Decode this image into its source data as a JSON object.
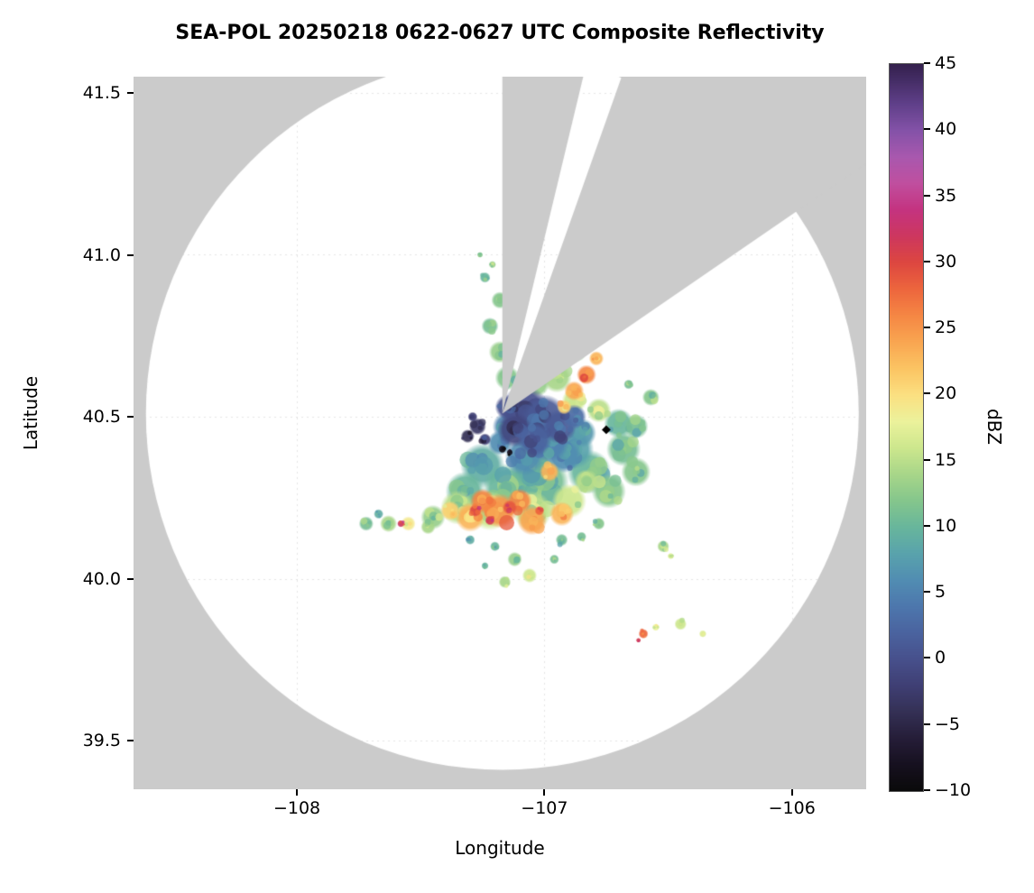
{
  "page": {
    "background": "#ffffff"
  },
  "chart_data": {
    "type": "heatmap",
    "variant": "radar-ppi-composite-reflectivity",
    "title": "SEA-POL 20250218 0622-0627 UTC Composite Reflectivity",
    "xlabel": "Longitude",
    "ylabel": "Latitude",
    "xlim": [
      -108.66,
      -105.7
    ],
    "ylim": [
      39.35,
      41.55
    ],
    "xticks": [
      -108,
      -107,
      -106
    ],
    "xtick_labels": [
      "−108",
      "−107",
      "−106"
    ],
    "yticks": [
      39.5,
      40.0,
      40.5,
      41.0,
      41.5
    ],
    "ytick_labels": [
      "39.5",
      "40.0",
      "40.5",
      "41.0",
      "41.5"
    ],
    "grid": {
      "visible": true,
      "style": "dotted"
    },
    "colors": {
      "no_coverage_gray": "#cbcbcb",
      "coverage_white": "#ffffff",
      "marker_black": "#000000",
      "text": "#000000"
    },
    "colorbar": {
      "label": "dBZ",
      "min": -10,
      "max": 45,
      "ticks": [
        45,
        40,
        35,
        30,
        25,
        20,
        15,
        10,
        5,
        0,
        -5,
        -10
      ],
      "tick_labels": [
        "45",
        "40",
        "35",
        "30",
        "25",
        "20",
        "15",
        "10",
        "5",
        "0",
        "−5",
        "−10"
      ],
      "orientation": "vertical",
      "position": "right"
    },
    "colormap_stops": [
      [
        -10,
        "#0a0a0a"
      ],
      [
        -8,
        "#16101f"
      ],
      [
        -6,
        "#251d38"
      ],
      [
        -4,
        "#343055"
      ],
      [
        -2,
        "#3f3f74"
      ],
      [
        0,
        "#47508c"
      ],
      [
        2,
        "#4a639f"
      ],
      [
        4,
        "#4d77ad"
      ],
      [
        6,
        "#518db2"
      ],
      [
        8,
        "#59a3ac"
      ],
      [
        10,
        "#68b69c"
      ],
      [
        12,
        "#85c68c"
      ],
      [
        14,
        "#a8d689"
      ],
      [
        16,
        "#cde78d"
      ],
      [
        18,
        "#ecf29c"
      ],
      [
        20,
        "#fbe081"
      ],
      [
        22,
        "#fbc463"
      ],
      [
        24,
        "#f9a651"
      ],
      [
        26,
        "#f58744"
      ],
      [
        28,
        "#ed663d"
      ],
      [
        30,
        "#dd4740"
      ],
      [
        32,
        "#cd375f"
      ],
      [
        34,
        "#c43380"
      ],
      [
        36,
        "#c04f9f"
      ],
      [
        38,
        "#a958ae"
      ],
      [
        40,
        "#8452a8"
      ],
      [
        42,
        "#60408a"
      ],
      [
        44,
        "#422b62"
      ],
      [
        45,
        "#35214e"
      ]
    ],
    "radar": {
      "center_lon": -107.17,
      "center_lat": 40.51,
      "radius_deg_lon": 1.44
    },
    "blocked_sectors_azimuth_deg": [
      [
        0,
        14
      ],
      [
        19.5,
        55.5
      ]
    ],
    "site_marker": {
      "lon": -106.75,
      "lat": 40.46,
      "shape": "diamond"
    },
    "echo_format": [
      "lon",
      "lat",
      "radius_deg",
      "dbz"
    ],
    "echoes": [
      [
        -107.25,
        40.35,
        0.09,
        9
      ],
      [
        -107.32,
        40.27,
        0.08,
        10
      ],
      [
        -107.15,
        40.28,
        0.1,
        10
      ],
      [
        -107.0,
        40.3,
        0.1,
        11
      ],
      [
        -106.82,
        40.33,
        0.09,
        10
      ],
      [
        -106.68,
        40.4,
        0.07,
        11
      ],
      [
        -106.63,
        40.33,
        0.06,
        12
      ],
      [
        -106.74,
        40.27,
        0.07,
        12
      ],
      [
        -106.88,
        40.4,
        0.08,
        8
      ],
      [
        -107.05,
        40.35,
        0.09,
        9
      ],
      [
        -106.7,
        40.48,
        0.06,
        10
      ],
      [
        -106.63,
        40.47,
        0.05,
        11
      ],
      [
        -107.3,
        40.12,
        0.02,
        9
      ],
      [
        -107.2,
        40.1,
        0.02,
        10
      ],
      [
        -106.85,
        40.13,
        0.02,
        11
      ],
      [
        -106.78,
        40.17,
        0.025,
        12
      ],
      [
        -107.35,
        40.22,
        0.07,
        15
      ],
      [
        -107.22,
        40.21,
        0.08,
        16
      ],
      [
        -107.05,
        40.21,
        0.08,
        15
      ],
      [
        -106.9,
        40.24,
        0.07,
        16
      ],
      [
        -106.83,
        40.3,
        0.05,
        15
      ],
      [
        -107.45,
        40.19,
        0.05,
        13
      ],
      [
        -106.95,
        40.62,
        0.06,
        14
      ],
      [
        -107.03,
        40.6,
        0.05,
        13
      ],
      [
        -106.88,
        40.55,
        0.05,
        16
      ],
      [
        -106.78,
        40.52,
        0.05,
        15
      ],
      [
        -106.97,
        40.68,
        0.05,
        14
      ],
      [
        -106.87,
        40.7,
        0.04,
        13
      ],
      [
        -107.15,
        40.62,
        0.05,
        12
      ],
      [
        -107.18,
        40.7,
        0.045,
        13
      ],
      [
        -107.14,
        40.72,
        0.03,
        16
      ],
      [
        -107.22,
        40.78,
        0.035,
        11
      ],
      [
        -107.18,
        40.86,
        0.035,
        12
      ],
      [
        -107.24,
        40.93,
        0.022,
        10
      ],
      [
        -107.21,
        40.97,
        0.015,
        13
      ],
      [
        -107.15,
        40.47,
        0.06,
        5
      ],
      [
        -107.08,
        40.38,
        0.08,
        6
      ],
      [
        -106.92,
        40.38,
        0.07,
        6
      ],
      [
        -106.85,
        40.45,
        0.06,
        7
      ],
      [
        -107.18,
        40.42,
        0.05,
        6
      ],
      [
        -106.98,
        40.42,
        0.08,
        5
      ],
      [
        -107.08,
        40.52,
        0.1,
        0
      ],
      [
        -107.0,
        40.5,
        0.09,
        1
      ],
      [
        -107.12,
        40.46,
        0.07,
        -1
      ],
      [
        -106.94,
        40.47,
        0.07,
        1
      ],
      [
        -107.04,
        40.43,
        0.07,
        2
      ],
      [
        -106.88,
        40.5,
        0.05,
        3
      ],
      [
        -107.15,
        40.53,
        0.05,
        0
      ],
      [
        -107.27,
        40.47,
        0.035,
        -3
      ],
      [
        -107.31,
        40.44,
        0.028,
        -4
      ],
      [
        -107.24,
        40.43,
        0.025,
        -2
      ],
      [
        -107.29,
        40.5,
        0.02,
        -2
      ],
      [
        -107.3,
        40.19,
        0.06,
        23
      ],
      [
        -107.18,
        40.21,
        0.07,
        25
      ],
      [
        -107.05,
        40.18,
        0.06,
        24
      ],
      [
        -106.93,
        40.2,
        0.05,
        23
      ],
      [
        -107.25,
        40.24,
        0.05,
        26
      ],
      [
        -107.1,
        40.24,
        0.05,
        26
      ],
      [
        -106.98,
        40.33,
        0.04,
        23
      ],
      [
        -107.38,
        40.21,
        0.04,
        21
      ],
      [
        -106.88,
        40.58,
        0.04,
        24
      ],
      [
        -106.83,
        40.63,
        0.04,
        26
      ],
      [
        -106.79,
        40.68,
        0.03,
        23
      ],
      [
        -106.92,
        40.53,
        0.03,
        21
      ],
      [
        -106.84,
        40.62,
        0.02,
        30
      ],
      [
        -107.28,
        40.21,
        0.025,
        30
      ],
      [
        -107.14,
        40.22,
        0.03,
        29
      ],
      [
        -107.02,
        40.21,
        0.02,
        28
      ],
      [
        -107.22,
        40.18,
        0.02,
        31
      ],
      [
        -107.72,
        40.17,
        0.03,
        11
      ],
      [
        -107.63,
        40.17,
        0.035,
        14
      ],
      [
        -107.55,
        40.17,
        0.03,
        19
      ],
      [
        -107.47,
        40.16,
        0.03,
        14
      ],
      [
        -107.58,
        40.17,
        0.015,
        32
      ],
      [
        -107.67,
        40.2,
        0.02,
        9
      ],
      [
        -107.12,
        40.06,
        0.03,
        13
      ],
      [
        -107.06,
        40.01,
        0.03,
        16
      ],
      [
        -107.16,
        39.99,
        0.025,
        14
      ],
      [
        -106.96,
        40.06,
        0.02,
        11
      ],
      [
        -106.93,
        40.12,
        0.025,
        11
      ],
      [
        -107.24,
        40.04,
        0.015,
        10
      ],
      [
        -106.57,
        40.56,
        0.035,
        12
      ],
      [
        -106.66,
        40.6,
        0.02,
        11
      ],
      [
        -106.52,
        40.1,
        0.025,
        14
      ],
      [
        -106.49,
        40.07,
        0.013,
        17
      ],
      [
        -106.6,
        39.83,
        0.02,
        28
      ],
      [
        -106.55,
        39.85,
        0.015,
        18
      ],
      [
        -106.45,
        39.86,
        0.025,
        16
      ],
      [
        -106.36,
        39.83,
        0.015,
        17
      ],
      [
        -106.62,
        39.81,
        0.01,
        31
      ],
      [
        -107.26,
        41.0,
        0.012,
        12
      ],
      [
        -107.12,
        40.92,
        0.01,
        10
      ],
      [
        -107.17,
        40.4,
        0.016,
        -9
      ],
      [
        -107.14,
        40.39,
        0.013,
        -8
      ]
    ]
  }
}
